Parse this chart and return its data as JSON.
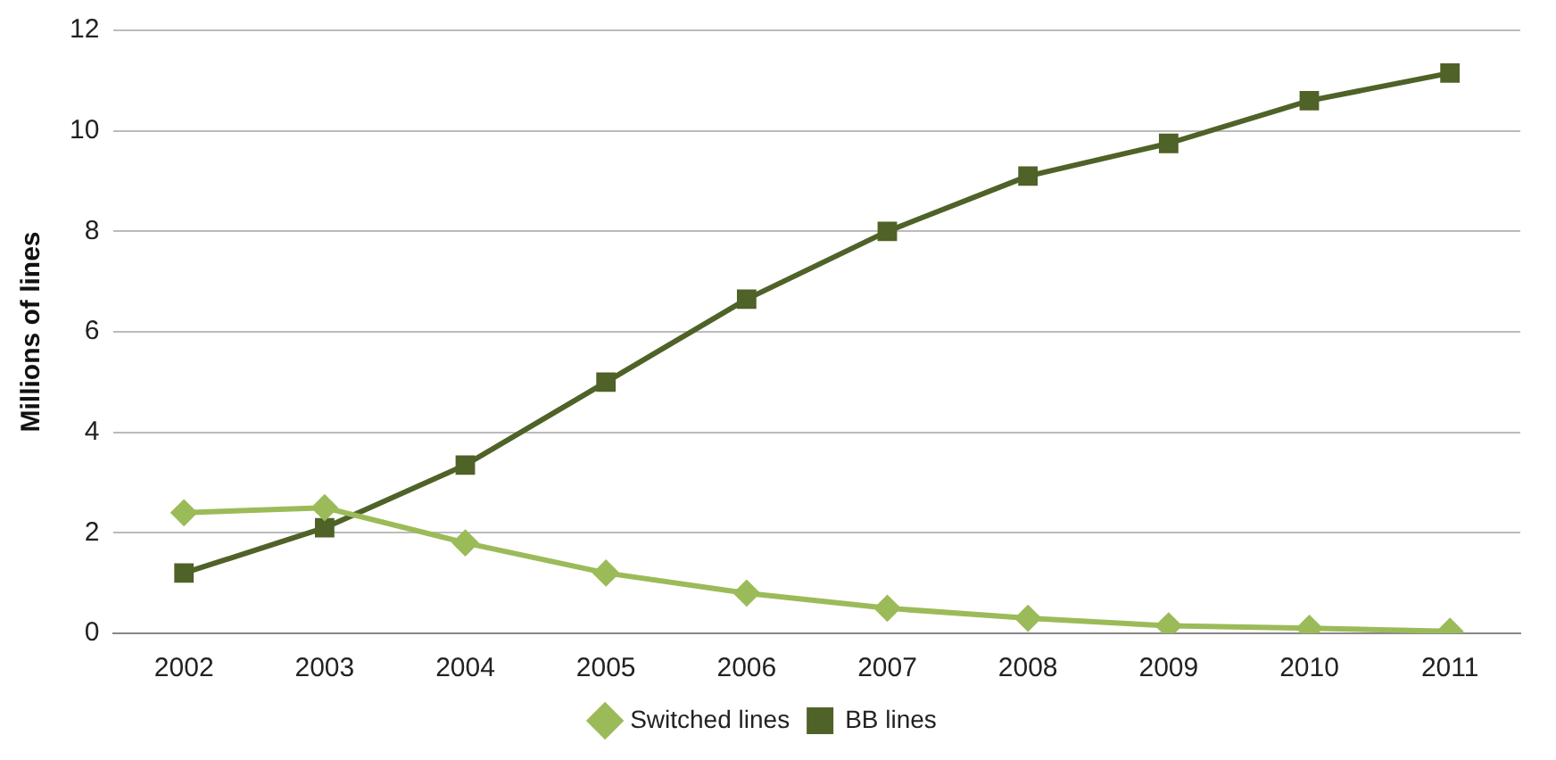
{
  "chart_data": {
    "type": "line",
    "ylabel": "Millions of lines",
    "categories": [
      "2002",
      "2003",
      "2004",
      "2005",
      "2006",
      "2007",
      "2008",
      "2009",
      "2010",
      "2011"
    ],
    "series": [
      {
        "name": "Switched lines",
        "color": "#9bbb59",
        "marker": "diamond",
        "values": [
          2.4,
          2.5,
          1.8,
          1.2,
          0.8,
          0.5,
          0.3,
          0.15,
          0.1,
          0.04
        ]
      },
      {
        "name": "BB lines",
        "color": "#4f6228",
        "marker": "square",
        "values": [
          1.2,
          2.1,
          3.35,
          5.0,
          6.65,
          8.0,
          9.1,
          9.75,
          10.6,
          11.15
        ]
      }
    ],
    "ylim": [
      0,
      12
    ],
    "yticks": [
      0,
      2,
      4,
      6,
      8,
      10,
      12
    ],
    "grid": "y",
    "legend": "bottom",
    "line_style": "solid"
  }
}
